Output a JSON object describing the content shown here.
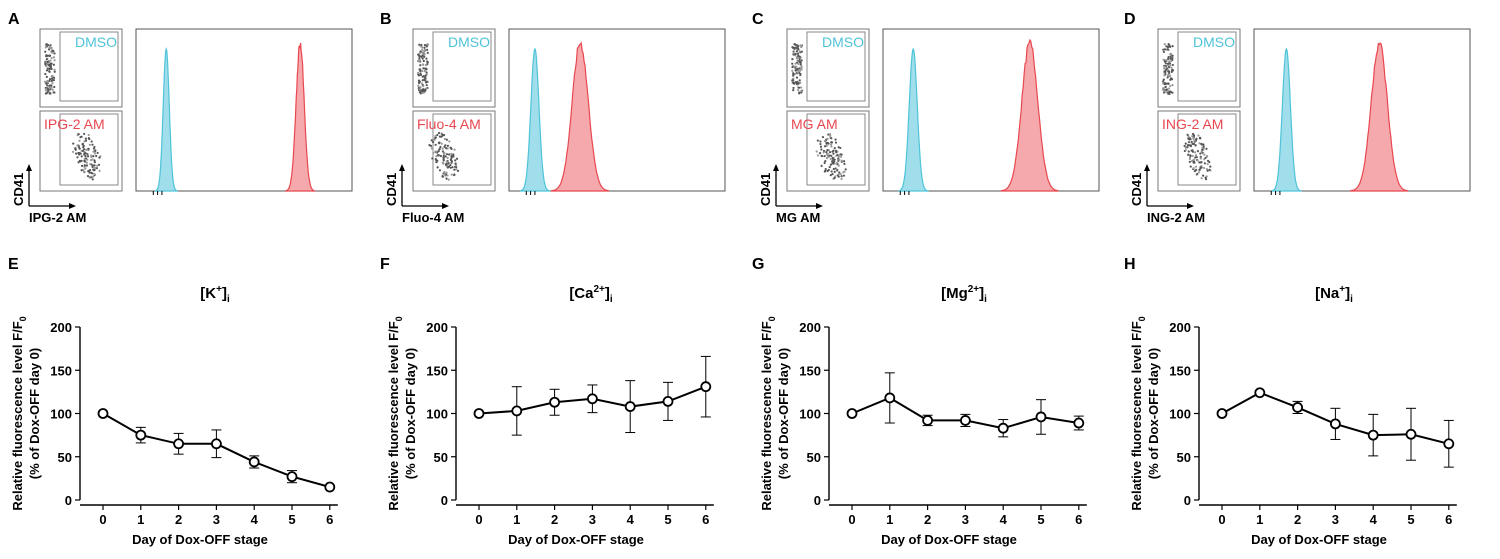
{
  "colors": {
    "dmso": "#4fc3d8",
    "stain": "#e8474f",
    "stain_fill": "#f39a9f",
    "dmso_fill": "#8fd8e8",
    "axis": "#000000",
    "dot": "#3a3a3a"
  },
  "flow_panels": [
    {
      "letter": "A",
      "dye": "IPG-2 AM",
      "top_label": "DMSO",
      "bottom_label": "IPG-2 AM",
      "y_axis": "CD41",
      "x_axis": "IPG-2 AM",
      "dmso_peak_frac": 0.14,
      "stain_peak_frac": 0.76
    },
    {
      "letter": "B",
      "dye": "Fluo-4 AM",
      "top_label": "DMSO",
      "bottom_label": "Fluo-4 AM",
      "y_axis": "CD41",
      "x_axis": "Fluo-4 AM",
      "dmso_peak_frac": 0.12,
      "stain_peak_frac": 0.33
    },
    {
      "letter": "C",
      "dye": "MG AM",
      "top_label": "DMSO",
      "bottom_label": "MG AM",
      "y_axis": "CD41",
      "x_axis": "MG AM",
      "dmso_peak_frac": 0.14,
      "stain_peak_frac": 0.68
    },
    {
      "letter": "D",
      "dye": "ING-2 AM",
      "top_label": "DMSO",
      "bottom_label": "ING-2 AM",
      "y_axis": "CD41",
      "x_axis": "ING-2 AM",
      "dmso_peak_frac": 0.15,
      "stain_peak_frac": 0.58
    }
  ],
  "chart_data": [
    {
      "letter": "E",
      "type": "line",
      "title_base": "[K",
      "title_sup": "+",
      "title_end": "]",
      "title_sub": "i",
      "x": [
        0,
        1,
        2,
        3,
        4,
        5,
        6
      ],
      "y": [
        100,
        75,
        65,
        65,
        44,
        27,
        15
      ],
      "err": [
        0,
        9,
        12,
        16,
        7,
        7,
        0
      ],
      "xlabel": "Day of Dox-OFF stage",
      "ylabel_line1": "Relative fluorescence level F/F",
      "ylabel_sub": "0",
      "ylabel_line2": "(% of Dox-OFF day 0)",
      "ylim": [
        0,
        200
      ],
      "yticks": [
        0,
        50,
        100,
        150,
        200
      ],
      "xticks": [
        0,
        1,
        2,
        3,
        4,
        5,
        6
      ]
    },
    {
      "letter": "F",
      "type": "line",
      "title_base": "[Ca",
      "title_sup": "2+",
      "title_end": "]",
      "title_sub": "i",
      "x": [
        0,
        1,
        2,
        3,
        4,
        5,
        6
      ],
      "y": [
        100,
        103,
        113,
        117,
        108,
        114,
        131
      ],
      "err": [
        0,
        28,
        15,
        16,
        30,
        22,
        35
      ],
      "xlabel": "Day of Dox-OFF stage",
      "ylabel_line1": "Relative fluorescence level F/F",
      "ylabel_sub": "0",
      "ylabel_line2": "(% of Dox-OFF day 0)",
      "ylim": [
        0,
        200
      ],
      "yticks": [
        0,
        50,
        100,
        150,
        200
      ],
      "xticks": [
        0,
        1,
        2,
        3,
        4,
        5,
        6
      ]
    },
    {
      "letter": "G",
      "type": "line",
      "title_base": "[Mg",
      "title_sup": "2+",
      "title_end": "]",
      "title_sub": "i",
      "x": [
        0,
        1,
        2,
        3,
        4,
        5,
        6
      ],
      "y": [
        100,
        118,
        92,
        92,
        83,
        96,
        89
      ],
      "err": [
        0,
        29,
        6,
        7,
        10,
        20,
        8
      ],
      "xlabel": "Day of Dox-OFF stage",
      "ylabel_line1": "Relative fluorescence level F/F",
      "ylabel_sub": "0",
      "ylabel_line2": "(% of Dox-OFF day 0)",
      "ylim": [
        0,
        200
      ],
      "yticks": [
        0,
        50,
        100,
        150,
        200
      ],
      "xticks": [
        0,
        1,
        2,
        3,
        4,
        5,
        6
      ]
    },
    {
      "letter": "H",
      "type": "line",
      "title_base": "[Na",
      "title_sup": "+",
      "title_end": "]",
      "title_sub": "i",
      "x": [
        0,
        1,
        2,
        3,
        4,
        5,
        6
      ],
      "y": [
        100,
        124,
        107,
        88,
        75,
        76,
        65
      ],
      "err": [
        0,
        0,
        7,
        18,
        24,
        30,
        27
      ],
      "xlabel": "Day of Dox-OFF stage",
      "ylabel_line1": "Relative fluorescence level F/F",
      "ylabel_sub": "0",
      "ylabel_line2": "(% of Dox-OFF day 0)",
      "ylim": [
        0,
        200
      ],
      "yticks": [
        0,
        50,
        100,
        150,
        200
      ],
      "xticks": [
        0,
        1,
        2,
        3,
        4,
        5,
        6
      ]
    }
  ]
}
